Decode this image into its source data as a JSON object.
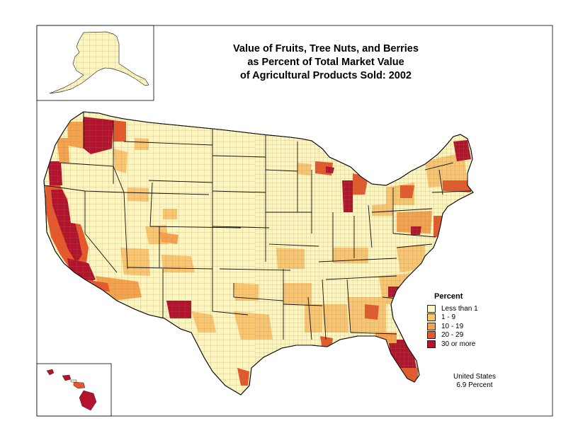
{
  "title": {
    "lines": [
      "Value of Fruits, Tree Nuts, and Berries",
      "as Percent of Total Market Value",
      "of Agricultural Products Sold:  2002"
    ]
  },
  "legend": {
    "title": "Percent",
    "items": [
      {
        "label": "Less than 1",
        "color": "#fdf5bd"
      },
      {
        "label": "1 - 9",
        "color": "#fbc56f"
      },
      {
        "label": "10 - 19",
        "color": "#f6a24c"
      },
      {
        "label": "20 - 29",
        "color": "#e8572a"
      },
      {
        "label": "30 or more",
        "color": "#b5122d"
      }
    ]
  },
  "summary": {
    "region": "United States",
    "value": "6.9 Percent"
  },
  "colors": {
    "background": "#ffffff",
    "county_border": "#7a7452",
    "state_border": "#111111",
    "base_fill": "#fdf5bd"
  }
}
